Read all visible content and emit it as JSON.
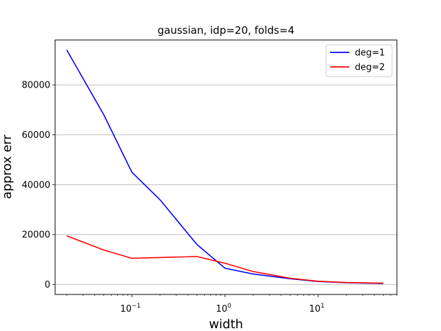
{
  "chart_data": {
    "type": "line",
    "title": "gaussian, idp=20, folds=4",
    "xlabel": "width",
    "ylabel": "approx err",
    "xscale": "log",
    "xlim": [
      0.015,
      70
    ],
    "ylim": [
      -4000,
      98000
    ],
    "grid": "y-major",
    "legend_position": "top-right",
    "x": [
      0.02,
      0.05,
      0.1,
      0.2,
      0.5,
      1,
      2,
      5,
      10,
      20,
      50
    ],
    "x_ticks": [
      {
        "value": 0.1,
        "base": "10",
        "exp": "−1"
      },
      {
        "value": 1,
        "base": "10",
        "exp": "0"
      },
      {
        "value": 10,
        "base": "10",
        "exp": "1"
      }
    ],
    "y_ticks": [
      {
        "value": 0,
        "label": "0"
      },
      {
        "value": 20000,
        "label": "20000"
      },
      {
        "value": 40000,
        "label": "40000"
      },
      {
        "value": 60000,
        "label": "60000"
      },
      {
        "value": 80000,
        "label": "80000"
      }
    ],
    "series": [
      {
        "name": "deg=1",
        "color": "#0000ff",
        "values": [
          94000,
          68000,
          45000,
          34000,
          16000,
          6500,
          4200,
          2300,
          1200,
          700,
          400
        ]
      },
      {
        "name": "deg=2",
        "color": "#ff0000",
        "values": [
          19500,
          13800,
          10500,
          10800,
          11200,
          8500,
          5200,
          2500,
          1300,
          800,
          500
        ]
      }
    ]
  }
}
